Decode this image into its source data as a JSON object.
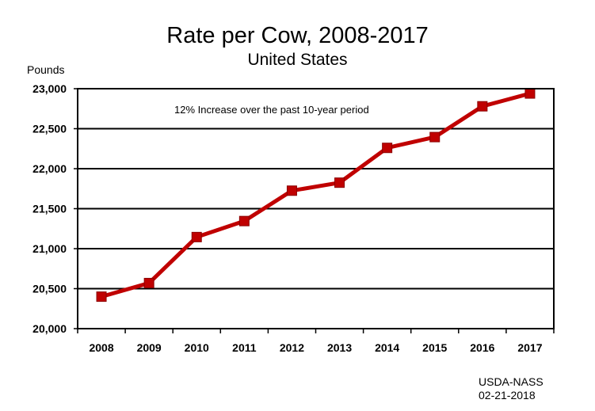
{
  "title": "Rate per Cow, 2008-2017",
  "subtitle": "United States",
  "source": {
    "line1": "USDA-NASS",
    "line2": "02-21-2018"
  },
  "chart_data": {
    "type": "line",
    "title": "Rate per Cow, 2008-2017",
    "subtitle": "United States",
    "xlabel": "",
    "ylabel": "Pounds",
    "categories": [
      "2008",
      "2009",
      "2010",
      "2011",
      "2012",
      "2013",
      "2014",
      "2015",
      "2016",
      "2017"
    ],
    "series": [
      {
        "values": [
          20400,
          20570,
          21145,
          21345,
          21725,
          21825,
          22260,
          22395,
          22780,
          22940
        ]
      }
    ],
    "ylim": [
      20000,
      23000
    ],
    "yticks": [
      "20,000",
      "20,500",
      "21,000",
      "21,500",
      "22,000",
      "22,500",
      "23,000"
    ],
    "annotation": "12% Increase over the past 10-year period",
    "grid": true,
    "legend": "none",
    "line_color": "#c00000",
    "marker_color": "#c00000"
  }
}
